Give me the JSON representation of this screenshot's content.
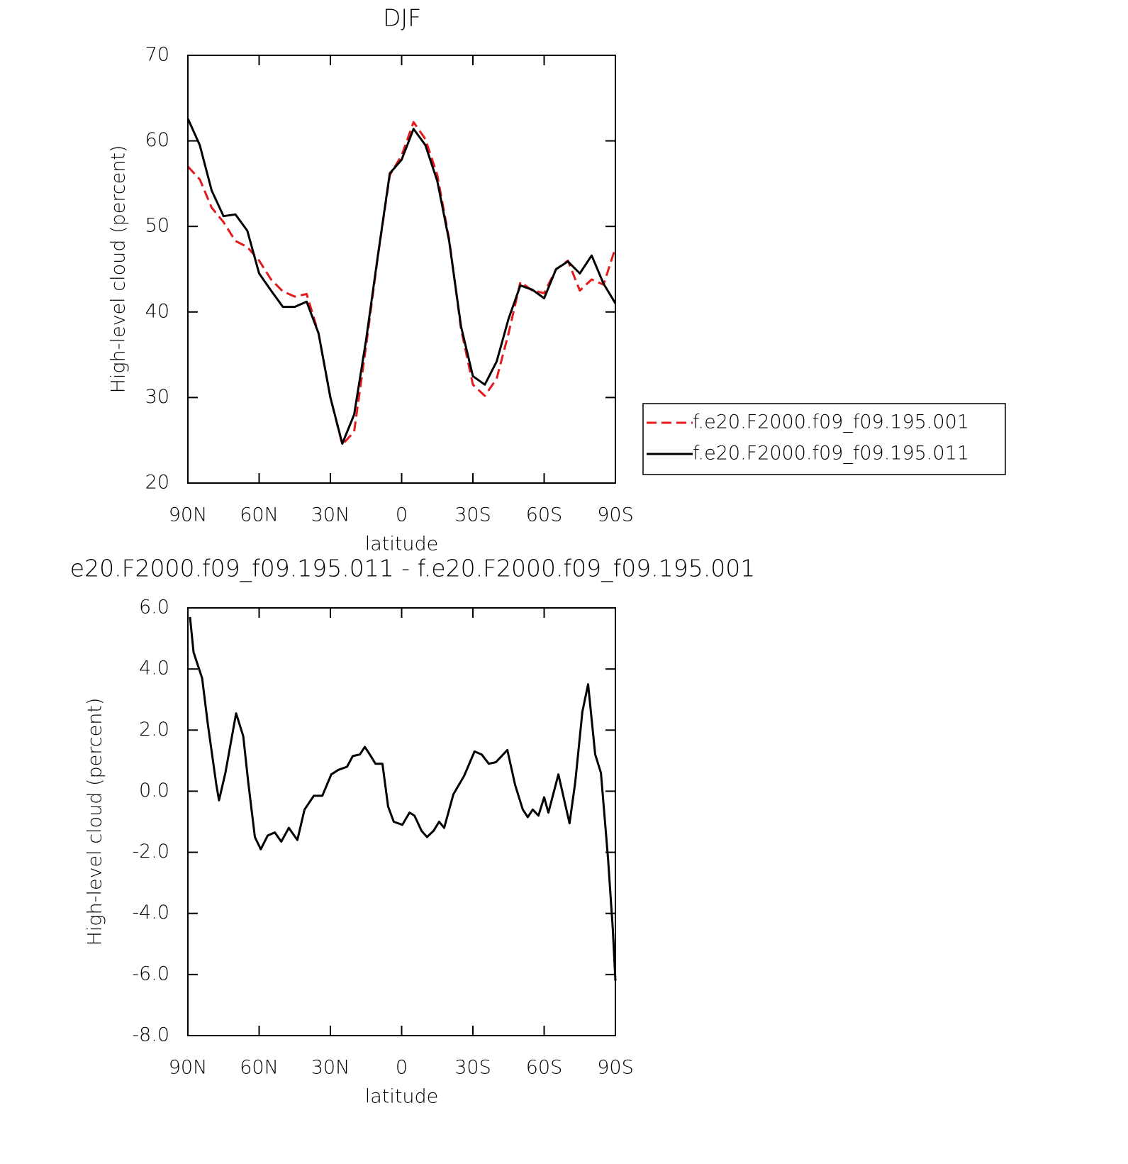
{
  "chart_data": [
    {
      "type": "line",
      "title": "DJF",
      "xlabel": "latitude",
      "ylabel": "High-level cloud (percent)",
      "x": [
        90,
        85,
        80,
        75,
        70,
        65,
        60,
        55,
        50,
        45,
        40,
        35,
        30,
        25,
        20,
        15,
        10,
        5,
        0,
        -5,
        -10,
        -15,
        -20,
        -25,
        -30,
        -35,
        -40,
        -45,
        -50,
        -55,
        -60,
        -65,
        -70,
        -75,
        -80,
        -85,
        -90
      ],
      "series": [
        {
          "name": "f.e20.F2000.f09_f09.195.001",
          "color": "#e41a1c",
          "line_style": "dashed",
          "values": [
            57,
            55.5,
            52.2,
            50.5,
            48.3,
            47.6,
            46,
            43.8,
            42.4,
            41.8,
            42.1,
            37.5,
            30,
            24.5,
            26,
            36,
            46.5,
            56,
            58.3,
            62.2,
            60.2,
            56,
            48.5,
            38,
            31.5,
            30.2,
            32.2,
            37.5,
            43.5,
            42.5,
            42.2,
            45,
            46,
            42.5,
            43.8,
            43.2,
            47.5
          ]
        },
        {
          "name": "f.e20.F2000.f09_f09.195.011",
          "color": "#000000",
          "line_style": "solid",
          "values": [
            62.6,
            59.5,
            54.2,
            51.2,
            51.4,
            49.5,
            44.5,
            42.5,
            40.6,
            40.6,
            41.2,
            37.5,
            30,
            24.6,
            28,
            36.7,
            46.6,
            56.2,
            57.8,
            61.4,
            59.5,
            55.3,
            48.3,
            38.3,
            32.5,
            31.5,
            34.2,
            39.2,
            43.1,
            42.6,
            41.6,
            45,
            45.9,
            44.5,
            46.6,
            43.3,
            41
          ]
        }
      ],
      "xlim": [
        90,
        -90
      ],
      "xticks": [
        {
          "value": 90,
          "label": "90N"
        },
        {
          "value": 60,
          "label": "60N"
        },
        {
          "value": 30,
          "label": "30N"
        },
        0,
        {
          "value": -30,
          "label": "30S"
        },
        {
          "value": -60,
          "label": "60S"
        },
        {
          "value": -90,
          "label": "90S"
        }
      ],
      "ylim": [
        20,
        70
      ],
      "yticks": [
        20,
        30,
        40,
        50,
        60,
        70
      ],
      "grid": false,
      "legend_position": "right"
    },
    {
      "type": "line",
      "title": "e20.F2000.f09_f09.195.011 - f.e20.F2000.f09_f09.195.001",
      "xlabel": "latitude",
      "ylabel": "High-level cloud (percent)",
      "x": [
        89.1,
        87.6,
        84,
        81.6,
        78,
        76.9,
        74.2,
        69.7,
        66.7,
        64.6,
        61.8,
        59.3,
        56.4,
        53.4,
        50.7,
        47.5,
        43.9,
        40.9,
        37,
        33.4,
        29.6,
        26.6,
        23,
        20.6,
        17.6,
        15.5,
        13.4,
        11,
        8.1,
        5.7,
        3.3,
        -0.3,
        -3.3,
        -5.4,
        -8.4,
        -10.7,
        -13.4,
        -15.8,
        -17.9,
        -21.8,
        -26.3,
        -30.7,
        -33.7,
        -36.7,
        -39.7,
        -44.5,
        -47.8,
        -51,
        -53.1,
        -55.2,
        -57.6,
        -60,
        -61.8,
        -66,
        -70.7,
        -73.1,
        -76.1,
        -78.5,
        -81.5,
        -83.9,
        -86.9,
        -88.9,
        -90
      ],
      "series": [
        {
          "color": "#000000",
          "line_style": "solid",
          "values": [
            5.7,
            4.55,
            3.7,
            2.2,
            0.2,
            -0.3,
            0.6,
            2.55,
            1.8,
            0.3,
            -1.5,
            -1.9,
            -1.45,
            -1.35,
            -1.65,
            -1.2,
            -1.6,
            -0.6,
            -0.15,
            -0.15,
            0.55,
            0.7,
            0.8,
            1.15,
            1.2,
            1.45,
            1.2,
            0.9,
            0.9,
            -0.5,
            -1.0,
            -1.1,
            -0.7,
            -0.8,
            -1.3,
            -1.5,
            -1.3,
            -1.0,
            -1.2,
            -0.1,
            0.5,
            1.3,
            1.2,
            0.9,
            0.95,
            1.35,
            0.2,
            -0.6,
            -0.85,
            -0.6,
            -0.8,
            -0.2,
            -0.7,
            0.55,
            -1.05,
            0.3,
            2.6,
            3.5,
            1.2,
            0.6,
            -2.2,
            -4.5,
            -6.2
          ]
        }
      ],
      "xlim": [
        90,
        -90
      ],
      "xticks": [
        {
          "value": 90,
          "label": "90N"
        },
        {
          "value": 60,
          "label": "60N"
        },
        {
          "value": 30,
          "label": "30N"
        },
        0,
        {
          "value": -30,
          "label": "30S"
        },
        {
          "value": -60,
          "label": "60S"
        },
        {
          "value": -90,
          "label": "90S"
        }
      ],
      "ylim": [
        -8,
        6
      ],
      "yticks": [
        {
          "value": -8,
          "label": "-8.0"
        },
        {
          "value": -6,
          "label": "-6.0"
        },
        {
          "value": -4,
          "label": "-4.0"
        },
        {
          "value": -2,
          "label": "-2.0"
        },
        {
          "value": 0,
          "label": "0.0"
        },
        {
          "value": 2,
          "label": "2.0"
        },
        {
          "value": 4,
          "label": "4.0"
        },
        {
          "value": 6,
          "label": "6.0"
        }
      ],
      "grid": false
    }
  ]
}
